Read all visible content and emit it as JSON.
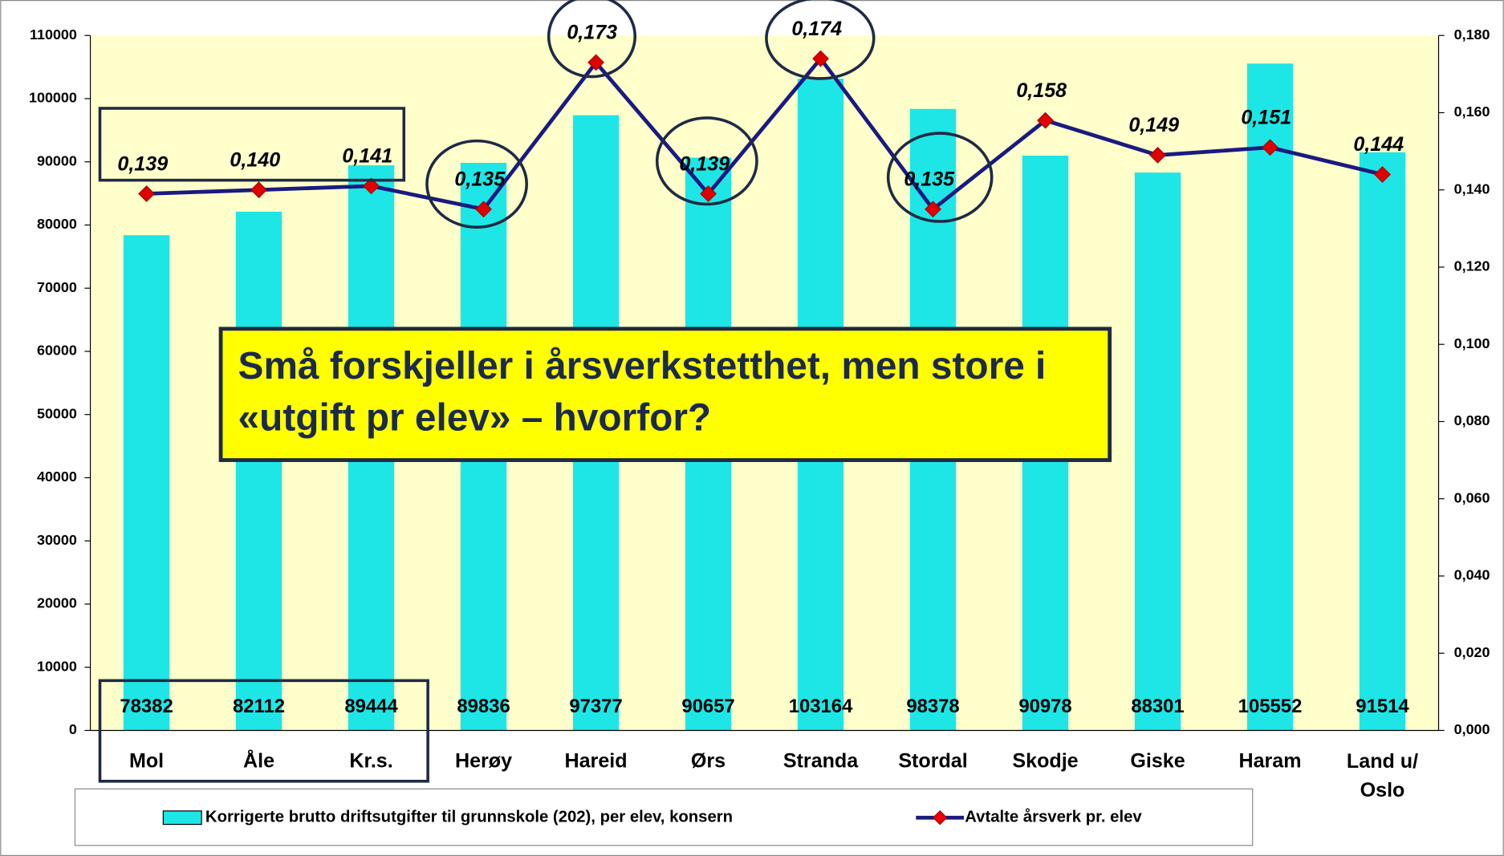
{
  "chart_data": {
    "type": "bar",
    "annotation": "Små forskjeller i årsverkstetthet, men store i «utgift pr elev» – hvorfor?",
    "categories": [
      "Mol",
      "Åle",
      "Kr.s.",
      "Herøy",
      "Hareid",
      "Ørs",
      "Stranda",
      "Stordal",
      "Skodje",
      "Giske",
      "Haram",
      "Land u/ Oslo"
    ],
    "series": [
      {
        "name": "Korrigerte brutto driftsutgifter til grunnskole (202), per elev, konsern",
        "type": "bar",
        "color": "#1ee6e6",
        "values": [
          78382,
          82112,
          89444,
          89836,
          97377,
          90657,
          103164,
          98378,
          90978,
          88301,
          105552,
          91514
        ]
      },
      {
        "name": "Avtalte årsverk pr. elev",
        "type": "line",
        "axis": "y2",
        "color": "#1a1a80",
        "marker_color": "#e00000",
        "values": [
          0.139,
          0.14,
          0.141,
          0.135,
          0.173,
          0.139,
          0.174,
          0.135,
          0.158,
          0.149,
          0.151,
          0.144
        ],
        "value_labels": [
          "0,139",
          "0,140",
          "0,141",
          "0,135",
          "0,173",
          "0,139",
          "0,174",
          "0,135",
          "0,158",
          "0,149",
          "0,151",
          "0,144"
        ]
      }
    ],
    "ylim": [
      0,
      110000
    ],
    "yticks": [
      0,
      10000,
      20000,
      30000,
      40000,
      50000,
      60000,
      70000,
      80000,
      90000,
      100000,
      110000
    ],
    "y2lim": [
      0,
      0.18
    ],
    "y2ticks": [
      {
        "value": 0,
        "label": "0,000"
      },
      {
        "value": 0.02,
        "label": "0,020"
      },
      {
        "value": 0.04,
        "label": "0,040"
      },
      {
        "value": 0.06,
        "label": "0,060"
      },
      {
        "value": 0.08,
        "label": "0,080"
      },
      {
        "value": 0.1,
        "label": "0,100"
      },
      {
        "value": 0.12,
        "label": "0,120"
      },
      {
        "value": 0.14,
        "label": "0,140"
      },
      {
        "value": 0.16,
        "label": "0,160"
      },
      {
        "value": 0.18,
        "label": "0,180"
      }
    ],
    "grid": false
  }
}
